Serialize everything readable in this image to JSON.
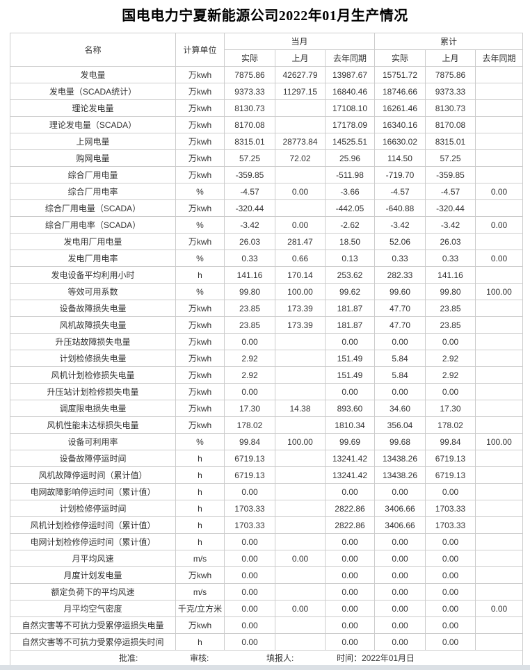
{
  "title": "国电电力宁夏新能源公司2022年01月生产情况",
  "table": {
    "headers": {
      "name": "名称",
      "unit": "计算单位",
      "current_month": "当月",
      "cumulative": "累计",
      "actual": "实际",
      "prev_month": "上月",
      "last_year_same_period": "去年同期"
    },
    "rows": [
      {
        "name": "发电量",
        "unit": "万kwh",
        "values": [
          "7875.86",
          "42627.79",
          "13987.67",
          "15751.72",
          "7875.86",
          ""
        ]
      },
      {
        "name": "发电量（SCADA统计）",
        "unit": "万kwh",
        "values": [
          "9373.33",
          "11297.15",
          "16840.46",
          "18746.66",
          "9373.33",
          ""
        ]
      },
      {
        "name": "理论发电量",
        "unit": "万kwh",
        "values": [
          "8130.73",
          "",
          "17108.10",
          "16261.46",
          "8130.73",
          ""
        ]
      },
      {
        "name": "理论发电量（SCADA）",
        "unit": "万kwh",
        "values": [
          "8170.08",
          "",
          "17178.09",
          "16340.16",
          "8170.08",
          ""
        ]
      },
      {
        "name": "上网电量",
        "unit": "万kwh",
        "values": [
          "8315.01",
          "28773.84",
          "14525.51",
          "16630.02",
          "8315.01",
          ""
        ]
      },
      {
        "name": "购网电量",
        "unit": "万kwh",
        "values": [
          "57.25",
          "72.02",
          "25.96",
          "114.50",
          "57.25",
          ""
        ]
      },
      {
        "name": "综合厂用电量",
        "unit": "万kwh",
        "values": [
          "-359.85",
          "",
          "-511.98",
          "-719.70",
          "-359.85",
          ""
        ]
      },
      {
        "name": "综合厂用电率",
        "unit": "%",
        "values": [
          "-4.57",
          "0.00",
          "-3.66",
          "-4.57",
          "-4.57",
          "0.00"
        ]
      },
      {
        "name": "综合厂用电量（SCADA）",
        "unit": "万kwh",
        "values": [
          "-320.44",
          "",
          "-442.05",
          "-640.88",
          "-320.44",
          ""
        ]
      },
      {
        "name": "综合厂用电率（SCADA）",
        "unit": "%",
        "values": [
          "-3.42",
          "0.00",
          "-2.62",
          "-3.42",
          "-3.42",
          "0.00"
        ]
      },
      {
        "name": "发电用厂用电量",
        "unit": "万kwh",
        "values": [
          "26.03",
          "281.47",
          "18.50",
          "52.06",
          "26.03",
          ""
        ]
      },
      {
        "name": "发电厂用电率",
        "unit": "%",
        "values": [
          "0.33",
          "0.66",
          "0.13",
          "0.33",
          "0.33",
          "0.00"
        ]
      },
      {
        "name": "发电设备平均利用小时",
        "unit": "h",
        "values": [
          "141.16",
          "170.14",
          "253.62",
          "282.33",
          "141.16",
          ""
        ]
      },
      {
        "name": "等效可用系数",
        "unit": "%",
        "values": [
          "99.80",
          "100.00",
          "99.62",
          "99.60",
          "99.80",
          "100.00"
        ]
      },
      {
        "name": "设备故障损失电量",
        "unit": "万kwh",
        "values": [
          "23.85",
          "173.39",
          "181.87",
          "47.70",
          "23.85",
          ""
        ]
      },
      {
        "name": "风机故障损失电量",
        "unit": "万kwh",
        "values": [
          "23.85",
          "173.39",
          "181.87",
          "47.70",
          "23.85",
          ""
        ]
      },
      {
        "name": "升压站故障损失电量",
        "unit": "万kwh",
        "values": [
          "0.00",
          "",
          "0.00",
          "0.00",
          "0.00",
          ""
        ]
      },
      {
        "name": "计划检修损失电量",
        "unit": "万kwh",
        "values": [
          "2.92",
          "",
          "151.49",
          "5.84",
          "2.92",
          ""
        ]
      },
      {
        "name": "风机计划检修损失电量",
        "unit": "万kwh",
        "values": [
          "2.92",
          "",
          "151.49",
          "5.84",
          "2.92",
          ""
        ]
      },
      {
        "name": "升压站计划检修损失电量",
        "unit": "万kwh",
        "values": [
          "0.00",
          "",
          "0.00",
          "0.00",
          "0.00",
          ""
        ]
      },
      {
        "name": "调度限电损失电量",
        "unit": "万kwh",
        "values": [
          "17.30",
          "14.38",
          "893.60",
          "34.60",
          "17.30",
          ""
        ]
      },
      {
        "name": "风机性能未达标损失电量",
        "unit": "万kwh",
        "values": [
          "178.02",
          "",
          "1810.34",
          "356.04",
          "178.02",
          ""
        ]
      },
      {
        "name": "设备可利用率",
        "unit": "%",
        "values": [
          "99.84",
          "100.00",
          "99.69",
          "99.68",
          "99.84",
          "100.00"
        ]
      },
      {
        "name": "设备故障停运时间",
        "unit": "h",
        "values": [
          "6719.13",
          "",
          "13241.42",
          "13438.26",
          "6719.13",
          ""
        ]
      },
      {
        "name": "风机故障停运时间（累计值）",
        "unit": "h",
        "values": [
          "6719.13",
          "",
          "13241.42",
          "13438.26",
          "6719.13",
          ""
        ]
      },
      {
        "name": "电网故障影响停运时间（累计值）",
        "unit": "h",
        "values": [
          "0.00",
          "",
          "0.00",
          "0.00",
          "0.00",
          ""
        ]
      },
      {
        "name": "计划检修停运时间",
        "unit": "h",
        "values": [
          "1703.33",
          "",
          "2822.86",
          "3406.66",
          "1703.33",
          ""
        ]
      },
      {
        "name": "风机计划检修停运时间（累计值）",
        "unit": "h",
        "values": [
          "1703.33",
          "",
          "2822.86",
          "3406.66",
          "1703.33",
          ""
        ]
      },
      {
        "name": "电网计划检修停运时间（累计值）",
        "unit": "h",
        "values": [
          "0.00",
          "",
          "0.00",
          "0.00",
          "0.00",
          ""
        ]
      },
      {
        "name": "月平均风速",
        "unit": "m/s",
        "values": [
          "0.00",
          "0.00",
          "0.00",
          "0.00",
          "0.00",
          ""
        ]
      },
      {
        "name": "月度计划发电量",
        "unit": "万kwh",
        "values": [
          "0.00",
          "",
          "0.00",
          "0.00",
          "0.00",
          ""
        ]
      },
      {
        "name": "额定负荷下的平均风速",
        "unit": "m/s",
        "values": [
          "0.00",
          "",
          "0.00",
          "0.00",
          "0.00",
          ""
        ]
      },
      {
        "name": "月平均空气密度",
        "unit": "千克/立方米",
        "values": [
          "0.00",
          "0.00",
          "0.00",
          "0.00",
          "0.00",
          "0.00"
        ]
      },
      {
        "name": "自然灾害等不可抗力受累停运损失电量",
        "unit": "万kwh",
        "values": [
          "0.00",
          "",
          "0.00",
          "0.00",
          "0.00",
          ""
        ]
      },
      {
        "name": "自然灾害等不可抗力受累停运损失时间",
        "unit": "h",
        "values": [
          "0.00",
          "",
          "0.00",
          "0.00",
          "0.00",
          ""
        ]
      }
    ]
  },
  "footer": {
    "approver_label": "批准:",
    "reviewer_label": "审核:",
    "preparer_label": "填报人:",
    "time_label": "时间：2022年01月日"
  }
}
